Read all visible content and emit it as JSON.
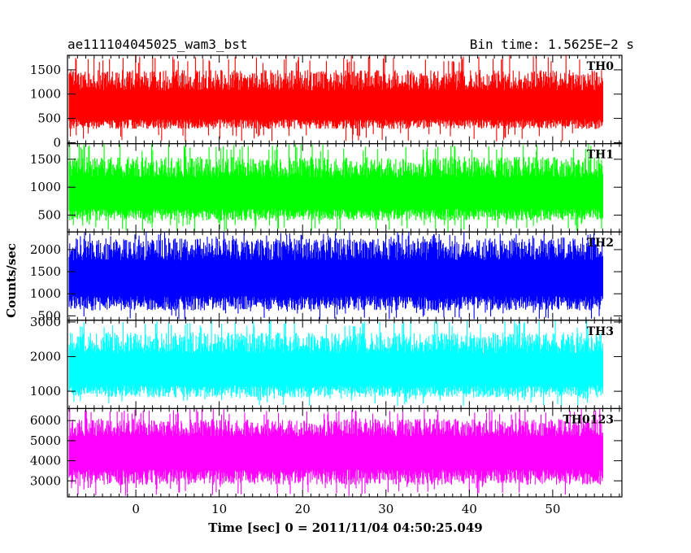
{
  "header": {
    "title": "ae111104045025_wam3_bst",
    "bin_time": "Bin time: 1.5625E−2 s"
  },
  "chart_data": {
    "type": "line",
    "title": "ae111104045025_wam3_bst",
    "subtitle": "Bin time: 1.5625E−2 s",
    "xlabel": "Time [sec] 0 = 2011/11/04 04:50:25.049",
    "ylabel": "Counts/sec",
    "xlim": [
      -8.2,
      58.3
    ],
    "x_range_of_data": [
      -8.0,
      56.0
    ],
    "x_ticks": [
      0,
      10,
      20,
      30,
      40,
      50
    ],
    "bin_time_sec": 0.015625,
    "grid": false,
    "panels": [
      {
        "name": "TH0",
        "color": "#ff0000",
        "ylim": [
          -20,
          1800
        ],
        "y_ticks": [
          0,
          500,
          1000,
          1500
        ],
        "mean": 730,
        "typical_low": 280,
        "typical_high": 1500,
        "min": 20,
        "max": 1800
      },
      {
        "name": "TH1",
        "color": "#00ff00",
        "ylim": [
          200,
          1780
        ],
        "y_ticks": [
          500,
          1000,
          1500
        ],
        "mean": 870,
        "typical_low": 400,
        "typical_high": 1550,
        "min": 210,
        "max": 1780
      },
      {
        "name": "TH2",
        "color": "#0000ff",
        "ylim": [
          400,
          2400
        ],
        "y_ticks": [
          500,
          1000,
          1500,
          2000
        ],
        "mean": 1350,
        "typical_low": 620,
        "typical_high": 2250,
        "min": 420,
        "max": 2400
      },
      {
        "name": "TH3",
        "color": "#00ffff",
        "ylim": [
          500,
          3050
        ],
        "y_ticks": [
          1000,
          2000,
          3000
        ],
        "mean": 1600,
        "typical_low": 820,
        "typical_high": 2700,
        "min": 560,
        "max": 3050
      },
      {
        "name": "TH0123",
        "color": "#ff00ff",
        "ylim": [
          2200,
          6600
        ],
        "y_ticks": [
          3000,
          4000,
          5000,
          6000
        ],
        "mean": 4500,
        "typical_low": 2800,
        "typical_high": 6100,
        "min": 2250,
        "max": 6600
      }
    ]
  }
}
